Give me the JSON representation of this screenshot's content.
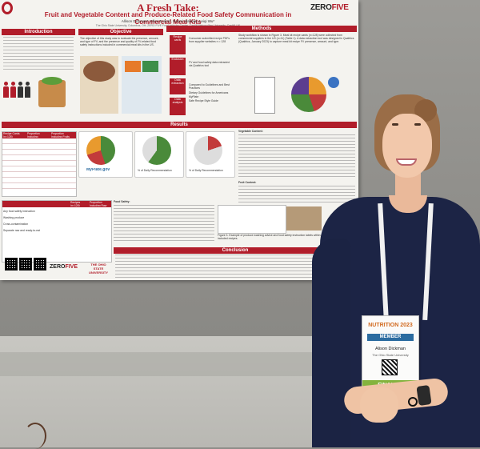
{
  "poster": {
    "title": "A Fresh Take:",
    "subtitle": "Fruit and Vegetable Content and Produce-Related Food Safety Communication in Commercial Meal Kits",
    "authors": "Allison Dickman*, Ellen Evans*, Naomi Mabiaar, Leiqi Wu*",
    "affiliation": "The Ohio State University, Columbus, OH; ZERO FIVE Food Industry Centre, Cardiff Metropolitan University, Cardiff, UK",
    "sections": {
      "introduction": "Introduction",
      "objective": "Objective",
      "methods": "Methods",
      "results": "Results",
      "conclusion": "Conclusion"
    },
    "objective_text": "The objective of this study was to evaluate the presence, amount, and type of FV, and the presence and quality of FV-related food safety instructions included in commercial meal kits in the US.",
    "methods_text": "Study workflow is shown in Figure 3. Meal kit recipe cards (n=128) were collected from commercial suppliers in the US (n=11) (Table 1). A data extraction tool was designed in Qualtrics (Qualtrics, January 2023) to capture meal kit recipe FV presence, amount, and type.",
    "flow_labels": [
      "Recipe cards",
      "Exclusion",
      "Data extraction",
      "Data analysis"
    ],
    "flow_notes": [
      "Consumer-submitted recipe PDFs from supplier websites n = 128",
      "FV and food safety data extracted via Qualtrics tool",
      "Compared to Guidelines and Best Practices",
      "Dietary Guidelines for Americans",
      "MyPlate",
      "Safe Recipe Style Guide"
    ],
    "myplate_label": "MyPlate.gov",
    "pie_labels": [
      "% of Daily Recommendation",
      "% of Daily Recommendation"
    ],
    "results_heading_vc": "Vegetable Content:",
    "results_heading_fc": "Fruit Content:",
    "results_heading_fs": "Food Safety:",
    "table_headers": [
      "Recipe Cards (n=128)",
      "Proportion Including Vegetables",
      "Proportion Including Fruits"
    ],
    "safety_table_headers": [
      "Recipes (n=128)",
      "Proportion Including Raw Produce"
    ],
    "safety_rows": [
      "Any food safety instruction",
      "Washing produce",
      "Cross-contamination",
      "Separate raw and ready-to-eat"
    ],
    "figure_caption": "Figure 3. Example of produce washing advice and food safety instruction labels within included recipes.",
    "logo_zero": "ZERO",
    "logo_five": "FIVE",
    "osu_name": "THE OHIO STATE UNIVERSITY"
  },
  "badge": {
    "event": "NUTRITION 2023",
    "role": "MEMBER",
    "name": "Alison Dickman",
    "org": "The Ohio State University",
    "status": "FINALIST"
  },
  "colors": {
    "poster_accent": "#b11d2a",
    "dress": "#1c2445",
    "badge_green": "#84b33e",
    "badge_blue": "#2c6ca0"
  }
}
